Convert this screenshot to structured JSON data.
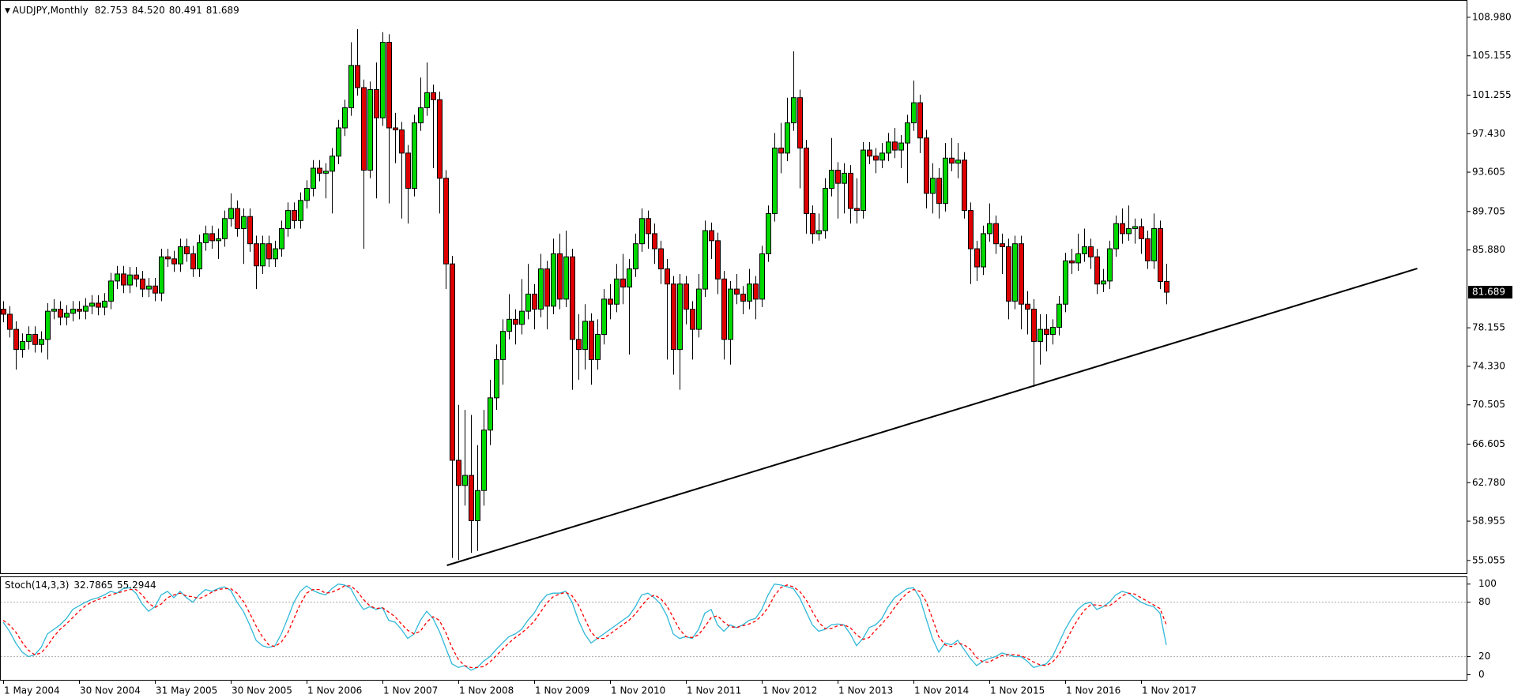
{
  "chart_data": {
    "type": "candlestick",
    "title": "AUDJPY,Monthly",
    "header_labels": [
      "82.753",
      "84.520",
      "80.491",
      "81.689"
    ],
    "bull_color": "#00d800",
    "bear_color": "#dd0000",
    "grid": false,
    "ylim": [
      53.707,
      110.62
    ],
    "yticks": [
      {
        "value": 108.98,
        "label": "108.980"
      },
      {
        "value": 105.155,
        "label": "105.155"
      },
      {
        "value": 101.255,
        "label": "101.255"
      },
      {
        "value": 97.43,
        "label": "97.430"
      },
      {
        "value": 93.605,
        "label": "93.605"
      },
      {
        "value": 89.705,
        "label": "89.705"
      },
      {
        "value": 85.88,
        "label": "85.880"
      },
      {
        "value": 78.155,
        "label": "78.155"
      },
      {
        "value": 74.33,
        "label": "74.330"
      },
      {
        "value": 70.505,
        "label": "70.505"
      },
      {
        "value": 66.605,
        "label": "66.605"
      },
      {
        "value": 62.78,
        "label": "62.780"
      },
      {
        "value": 58.955,
        "label": "58.955"
      },
      {
        "value": 55.055,
        "label": "55.055"
      }
    ],
    "x_labels": [
      "1 May 2004",
      "30 Nov 2004",
      "31 May 2005",
      "30 Nov 2005",
      "1 Nov 2006",
      "1 Nov 2007",
      "1 Nov 2008",
      "1 Nov 2009",
      "1 Nov 2010",
      "1 Nov 2011",
      "1 Nov 2012",
      "1 Nov 2013",
      "1 Nov 2014",
      "1 Nov 2015",
      "1 Nov 2016",
      "1 Nov 2017"
    ],
    "open": [
      80.0,
      79.5,
      78.0,
      76.0,
      76.8,
      77.5,
      76.5,
      77.0,
      79.8,
      80.0,
      79.2,
      79.6,
      80.0,
      79.8,
      80.3,
      80.6,
      80.2,
      80.8,
      82.8,
      83.5,
      82.4,
      83.4,
      83.0,
      82.0,
      82.3,
      81.6,
      85.2,
      85.0,
      84.5,
      86.2,
      85.5,
      84.0,
      86.6,
      87.5,
      86.8,
      87.0,
      89.0,
      90.0,
      88.0,
      89.2,
      86.5,
      84.3,
      86.5,
      85.0,
      86.0,
      88.0,
      89.8,
      88.8,
      90.8,
      92.0,
      94.0,
      93.5,
      93.7,
      95.2,
      98.0,
      100.0,
      104.2,
      102.0,
      93.8,
      101.8,
      99.0,
      106.5,
      98.0,
      97.8,
      95.5,
      92.0,
      98.5,
      100.0,
      101.5,
      100.8,
      93.0,
      84.5,
      65.0,
      62.5,
      63.5,
      59.0,
      62.0,
      68.0,
      71.2,
      75.0,
      77.8,
      79.0,
      78.5,
      79.8,
      81.5,
      80.0,
      84.0,
      80.3,
      85.5,
      81.0,
      85.2,
      77.0,
      76.0,
      78.8,
      75.0,
      77.5,
      81.0,
      80.5,
      83.0,
      82.2,
      84.0,
      86.5,
      89.0,
      87.5,
      86.0,
      84.0,
      82.5,
      76.0,
      82.5,
      80.0,
      78.0,
      82.0,
      87.8,
      86.8,
      83.0,
      77.0,
      82.0,
      81.5,
      80.8,
      82.5,
      81.0,
      85.5,
      89.5,
      96.0,
      95.5,
      98.5,
      101.0,
      96.0,
      89.5,
      87.5,
      87.8,
      92.0,
      93.8,
      92.5,
      93.5,
      90.0,
      89.8,
      95.8,
      95.2,
      94.8,
      95.5,
      96.6,
      95.8,
      96.5,
      98.5,
      100.5,
      97.0,
      91.5,
      93.0,
      90.5,
      95.0,
      94.5,
      94.8,
      89.8,
      86.0,
      84.2,
      87.5,
      88.5,
      86.5,
      86.2,
      80.8,
      86.5,
      80.5,
      80.0,
      76.8,
      78.0,
      77.5,
      78.2,
      80.5,
      84.8,
      84.6,
      85.5,
      86.2,
      85.2,
      82.5,
      82.8,
      86.0,
      88.5,
      87.5,
      88.0,
      88.2,
      87.0,
      84.8,
      88.0,
      82.753
    ],
    "high": [
      80.8,
      80.3,
      78.8,
      77.6,
      78.3,
      78.3,
      77.8,
      80.6,
      81.0,
      80.8,
      80.4,
      80.8,
      80.8,
      81.1,
      81.4,
      81.4,
      81.6,
      83.6,
      84.3,
      84.3,
      84.2,
      84.2,
      83.8,
      83.1,
      83.1,
      86.0,
      86.0,
      85.8,
      87.0,
      87.0,
      86.3,
      87.4,
      88.3,
      88.3,
      88.0,
      89.8,
      91.5,
      90.8,
      90.0,
      90.0,
      87.3,
      87.3,
      87.3,
      86.8,
      88.8,
      90.6,
      90.6,
      91.6,
      92.8,
      94.8,
      94.8,
      94.5,
      96.0,
      98.8,
      100.8,
      106.5,
      107.8,
      102.8,
      102.6,
      104.5,
      107.5,
      107.3,
      99.5,
      98.6,
      96.3,
      99.3,
      103.0,
      104.5,
      102.3,
      101.6,
      93.8,
      85.3,
      70.5,
      70.0,
      69.5,
      66.5,
      70.0,
      73.0,
      76.5,
      79.0,
      81.5,
      80.0,
      83.0,
      84.5,
      82.5,
      85.5,
      84.8,
      87.0,
      87.5,
      87.8,
      86.0,
      79.5,
      80.5,
      79.6,
      79.0,
      82.0,
      82.5,
      84.5,
      85.5,
      85.0,
      87.5,
      90.0,
      89.8,
      88.5,
      86.8,
      85.0,
      83.3,
      83.5,
      83.3,
      80.8,
      83.5,
      88.8,
      88.6,
      87.6,
      83.8,
      82.8,
      83.5,
      82.3,
      84.0,
      83.3,
      86.3,
      90.3,
      97.5,
      98.5,
      101.0,
      105.6,
      101.8,
      96.8,
      90.3,
      89.5,
      93.0,
      97.0,
      94.6,
      94.5,
      94.3,
      93.0,
      96.6,
      96.6,
      96.0,
      96.5,
      97.5,
      98.0,
      97.3,
      99.3,
      102.7,
      101.3,
      97.8,
      94.5,
      94.0,
      96.5,
      97.0,
      96.5,
      95.6,
      90.6,
      86.8,
      88.3,
      90.5,
      89.3,
      87.5,
      87.0,
      87.3,
      87.3,
      81.8,
      81.0,
      79.5,
      79.5,
      79.0,
      81.3,
      85.6,
      86.0,
      87.5,
      88.0,
      87.0,
      86.0,
      84.0,
      86.8,
      89.3,
      90.0,
      90.3,
      89.0,
      89.0,
      87.8,
      89.5,
      88.8,
      84.52
    ],
    "low": [
      78.7,
      77.2,
      74.0,
      75.2,
      76.0,
      75.7,
      75.7,
      75.0,
      79.0,
      78.4,
      78.4,
      78.8,
      79.0,
      79.0,
      79.5,
      79.4,
      79.4,
      80.0,
      82.0,
      81.6,
      81.6,
      82.2,
      81.2,
      81.2,
      80.8,
      80.8,
      84.2,
      83.7,
      83.7,
      84.7,
      83.2,
      83.2,
      85.8,
      86.0,
      85.0,
      86.2,
      88.2,
      87.2,
      84.5,
      85.7,
      82.0,
      83.5,
      84.2,
      84.2,
      85.2,
      87.2,
      88.0,
      88.0,
      90.0,
      91.2,
      92.7,
      91.0,
      89.5,
      94.4,
      97.2,
      99.2,
      101.2,
      86.0,
      93.0,
      91.0,
      98.2,
      90.5,
      94.5,
      89.0,
      88.5,
      91.2,
      97.7,
      99.2,
      94.0,
      89.5,
      82.0,
      55.3,
      55.1,
      60.5,
      55.8,
      56.0,
      60.5,
      66.5,
      70.0,
      72.5,
      77.0,
      76.5,
      77.5,
      79.0,
      78.0,
      79.2,
      78.0,
      79.5,
      80.0,
      80.2,
      72.0,
      73.0,
      74.0,
      72.5,
      74.0,
      76.5,
      79.0,
      79.7,
      80.5,
      75.5,
      83.2,
      85.7,
      86.0,
      84.5,
      82.5,
      75.0,
      73.5,
      72.0,
      78.5,
      75.0,
      77.2,
      81.2,
      85.0,
      81.5,
      75.0,
      74.5,
      80.5,
      79.5,
      80.0,
      79.0,
      80.2,
      84.7,
      88.7,
      93.5,
      94.7,
      97.7,
      92.0,
      87.5,
      86.5,
      86.8,
      87.0,
      91.2,
      89.0,
      89.5,
      88.5,
      88.5,
      89.0,
      94.4,
      93.5,
      94.0,
      94.7,
      95.0,
      94.0,
      92.5,
      97.7,
      95.5,
      90.0,
      89.5,
      89.0,
      89.7,
      93.7,
      93.0,
      89.0,
      82.5,
      82.8,
      83.4,
      86.7,
      85.5,
      83.5,
      79.0,
      80.0,
      78.0,
      77.5,
      72.3,
      74.5,
      75.8,
      76.5,
      77.4,
      79.7,
      83.5,
      83.8,
      84.7,
      84.0,
      81.5,
      81.7,
      82.0,
      85.2,
      86.5,
      86.8,
      86.5,
      85.5,
      84.0,
      84.0,
      82.0,
      80.491
    ],
    "close": [
      79.5,
      78.0,
      76.0,
      76.8,
      77.5,
      76.5,
      77.0,
      79.8,
      80.0,
      79.2,
      79.6,
      80.0,
      79.8,
      80.3,
      80.6,
      80.2,
      80.8,
      82.8,
      83.5,
      82.4,
      83.4,
      83.0,
      82.0,
      82.3,
      81.6,
      85.2,
      85.0,
      84.5,
      86.2,
      85.5,
      84.0,
      86.6,
      87.5,
      86.8,
      87.0,
      89.0,
      90.0,
      88.0,
      89.2,
      86.5,
      84.3,
      86.5,
      85.0,
      86.0,
      88.0,
      89.8,
      88.8,
      90.8,
      92.0,
      94.0,
      93.5,
      93.7,
      95.2,
      98.0,
      100.0,
      104.2,
      102.0,
      93.8,
      101.8,
      99.0,
      106.5,
      98.0,
      97.8,
      95.5,
      92.0,
      98.5,
      100.0,
      101.5,
      100.8,
      93.0,
      84.5,
      65.0,
      62.5,
      63.5,
      59.0,
      62.0,
      68.0,
      71.2,
      75.0,
      77.8,
      79.0,
      78.5,
      79.8,
      81.5,
      80.0,
      84.0,
      80.3,
      85.5,
      81.0,
      85.2,
      77.0,
      76.0,
      78.8,
      75.0,
      77.5,
      81.0,
      80.5,
      83.0,
      82.2,
      84.0,
      86.5,
      89.0,
      87.5,
      86.0,
      84.0,
      82.5,
      76.0,
      82.5,
      80.0,
      78.0,
      82.0,
      87.8,
      86.8,
      83.0,
      77.0,
      82.0,
      81.5,
      80.8,
      82.5,
      81.0,
      85.5,
      89.5,
      96.0,
      95.5,
      98.5,
      101.0,
      96.0,
      89.5,
      87.5,
      87.8,
      92.0,
      93.8,
      92.5,
      93.5,
      90.0,
      89.8,
      95.8,
      95.2,
      94.8,
      95.5,
      96.6,
      95.8,
      96.5,
      98.5,
      100.5,
      97.0,
      91.5,
      93.0,
      90.5,
      95.0,
      94.5,
      94.8,
      89.8,
      86.0,
      84.2,
      87.5,
      88.5,
      86.5,
      86.2,
      80.8,
      86.5,
      80.5,
      80.0,
      76.8,
      78.0,
      77.5,
      78.2,
      80.5,
      84.8,
      84.6,
      85.5,
      86.2,
      85.2,
      82.5,
      82.8,
      86.0,
      88.5,
      87.5,
      88.0,
      88.2,
      87.0,
      84.8,
      88.0,
      82.753,
      81.689
    ],
    "trendline": {
      "x": [
        70.2,
        223.7
      ],
      "y": [
        54.57,
        84.04
      ],
      "color": "#000000"
    },
    "indicator": {
      "type": "line",
      "name": "Stoch(14,3,3)",
      "ylim": [
        -6.5,
        107.6
      ],
      "yticks": [
        100,
        80,
        20,
        0
      ],
      "levels": [
        80,
        20
      ],
      "series": [
        {
          "color": "#2fb8d8",
          "dash": false,
          "values": [
            58,
            48,
            35,
            25,
            20,
            22,
            30,
            45,
            50,
            55,
            62,
            72,
            76,
            80,
            83,
            85,
            88,
            92,
            90,
            95,
            96,
            90,
            78,
            70,
            75,
            88,
            92,
            85,
            92,
            85,
            80,
            88,
            94,
            92,
            95,
            97,
            93,
            80,
            70,
            55,
            38,
            32,
            30,
            32,
            45,
            62,
            80,
            92,
            98,
            93,
            90,
            88,
            95,
            100,
            99,
            95,
            82,
            72,
            75,
            72,
            74,
            60,
            58,
            50,
            40,
            45,
            60,
            70,
            62,
            48,
            30,
            12,
            8,
            10,
            5,
            8,
            15,
            20,
            28,
            35,
            42,
            45,
            50,
            60,
            68,
            80,
            88,
            90,
            90,
            92,
            80,
            60,
            45,
            35,
            40,
            45,
            50,
            55,
            60,
            65,
            75,
            88,
            90,
            85,
            78,
            65,
            45,
            40,
            42,
            40,
            50,
            68,
            72,
            55,
            48,
            55,
            52,
            55,
            60,
            62,
            72,
            88,
            100,
            99,
            97,
            95,
            85,
            70,
            55,
            48,
            50,
            55,
            56,
            55,
            45,
            32,
            40,
            52,
            55,
            62,
            75,
            85,
            90,
            95,
            96,
            85,
            62,
            40,
            25,
            35,
            33,
            38,
            28,
            18,
            10,
            15,
            18,
            20,
            24,
            22,
            20,
            20,
            15,
            8,
            10,
            12,
            20,
            35,
            50,
            62,
            72,
            78,
            80,
            72,
            75,
            80,
            88,
            92,
            90,
            85,
            80,
            77,
            75,
            68,
            32.7865
          ]
        },
        {
          "color": "#ff0000",
          "dash": true,
          "values": [
            60,
            55,
            47,
            36,
            27,
            22,
            24,
            32,
            42,
            50,
            56,
            63,
            70,
            76,
            80,
            83,
            85,
            88,
            90,
            92,
            94,
            94,
            88,
            79,
            74,
            78,
            85,
            88,
            90,
            87,
            86,
            84,
            87,
            91,
            94,
            95,
            95,
            90,
            81,
            68,
            54,
            42,
            33,
            31,
            36,
            46,
            62,
            78,
            90,
            94,
            94,
            90,
            91,
            94,
            98,
            98,
            92,
            83,
            76,
            73,
            74,
            69,
            64,
            56,
            49,
            45,
            48,
            58,
            64,
            60,
            47,
            30,
            17,
            10,
            8,
            8,
            9,
            14,
            21,
            28,
            35,
            41,
            46,
            52,
            59,
            69,
            79,
            86,
            89,
            91,
            87,
            77,
            62,
            47,
            40,
            40,
            45,
            50,
            55,
            60,
            67,
            76,
            84,
            88,
            84,
            76,
            63,
            50,
            42,
            41,
            44,
            53,
            63,
            65,
            58,
            53,
            52,
            54,
            56,
            59,
            65,
            74,
            87,
            96,
            99,
            97,
            92,
            83,
            70,
            58,
            51,
            51,
            54,
            55,
            52,
            44,
            39,
            41,
            49,
            56,
            64,
            74,
            83,
            90,
            94,
            92,
            81,
            62,
            42,
            33,
            31,
            35,
            33,
            28,
            19,
            14,
            14,
            18,
            21,
            22,
            22,
            21,
            18,
            14,
            11,
            10,
            14,
            22,
            35,
            49,
            61,
            71,
            77,
            77,
            76,
            76,
            81,
            87,
            90,
            89,
            85,
            81,
            77,
            73,
            55.2944
          ]
        }
      ]
    }
  }
}
